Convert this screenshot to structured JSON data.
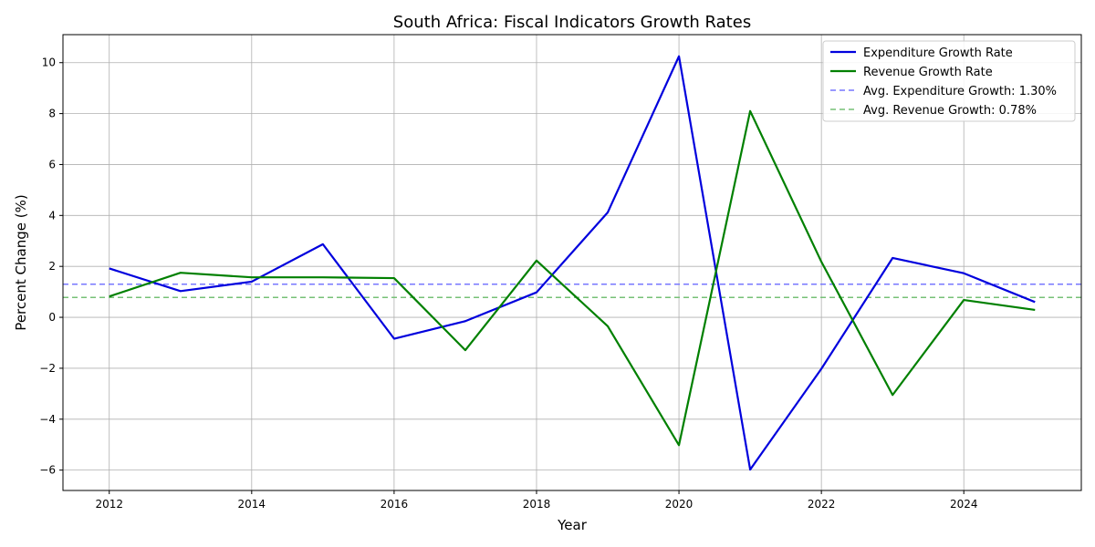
{
  "chart_data": {
    "type": "line",
    "title": "South Africa: Fiscal Indicators Growth Rates",
    "xlabel": "Year",
    "ylabel": "Percent Change (%)",
    "x": [
      2012,
      2013,
      2014,
      2015,
      2016,
      2017,
      2018,
      2019,
      2020,
      2021,
      2022,
      2023,
      2024,
      2025
    ],
    "xlim": [
      2011.35,
      2025.65
    ],
    "ylim": [
      -6.8,
      11.1
    ],
    "x_ticks": [
      2012,
      2014,
      2016,
      2018,
      2020,
      2022,
      2024
    ],
    "y_ticks": [
      -6,
      -4,
      -2,
      0,
      2,
      4,
      6,
      8,
      10
    ],
    "grid": true,
    "legend_position": "top-right",
    "series": [
      {
        "name": "Expenditure Growth Rate",
        "color": "#0000dd",
        "style": "solid",
        "values": [
          1.92,
          1.03,
          1.4,
          2.87,
          -0.84,
          -0.15,
          0.98,
          4.12,
          10.25,
          -5.98,
          -2.02,
          2.33,
          1.73,
          0.6
        ]
      },
      {
        "name": "Revenue Growth Rate",
        "color": "#008000",
        "style": "solid",
        "values": [
          0.82,
          1.75,
          1.57,
          1.57,
          1.54,
          -1.29,
          2.23,
          -0.35,
          -5.02,
          8.1,
          2.18,
          -3.05,
          0.68,
          0.29
        ]
      }
    ],
    "reference_lines": [
      {
        "name": "Avg. Expenditure Growth: 1.30%",
        "value": 1.3,
        "color": "#7777ff",
        "style": "dashed"
      },
      {
        "name": "Avg. Revenue Growth: 0.78%",
        "value": 0.78,
        "color": "#77c077",
        "style": "dashed"
      }
    ]
  }
}
